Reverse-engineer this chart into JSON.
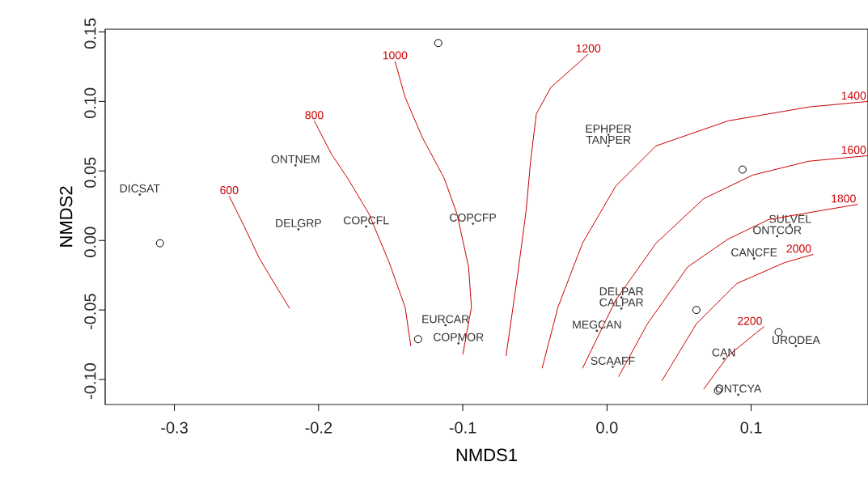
{
  "chart_data": {
    "type": "scatter",
    "xlabel": "NMDS1",
    "ylabel": "NMDS2",
    "xlim": [
      -0.348,
      0.181
    ],
    "ylim": [
      -0.118,
      0.152
    ],
    "xticks": [
      -0.3,
      -0.2,
      -0.1,
      {
        "value": 0,
        "label": "0.0"
      },
      0.1
    ],
    "yticks": [
      {
        "value": -0.1,
        "label": "-0.10"
      },
      {
        "value": -0.05,
        "label": "-0.05"
      },
      {
        "value": 0,
        "label": "0.00"
      },
      {
        "value": 0.05,
        "label": "0.05"
      },
      {
        "value": 0.1,
        "label": "0.10"
      },
      {
        "value": 0.15,
        "label": "0.15"
      }
    ],
    "grid": false,
    "series": [
      {
        "marker": "circle",
        "color": "#000000",
        "x": [
          -0.31,
          -0.117,
          0.094,
          0.062,
          0.119,
          -0.131,
          0.077
        ],
        "values": [
          -0.002,
          0.142,
          0.051,
          -0.05,
          -0.066,
          -0.071,
          -0.108
        ]
      },
      {
        "marker": "circle",
        "color": "#333333",
        "x": [
          -0.324,
          -0.216,
          -0.214,
          -0.167,
          -0.093,
          -0.112,
          -0.103,
          0.001,
          0.001,
          0.01,
          0.01,
          -0.007,
          0.004,
          0.127,
          0.118,
          0.102,
          0.081,
          0.091,
          0.131
        ],
        "values": [
          0.033,
          0.054,
          0.008,
          0.01,
          0.012,
          -0.061,
          -0.074,
          0.076,
          0.068,
          -0.041,
          -0.049,
          -0.065,
          -0.091,
          0.011,
          0.003,
          -0.013,
          -0.085,
          -0.111,
          -0.076
        ],
        "value_labels": [
          "DICSAT",
          "ONTNEM",
          "DELGRP",
          "COPCFL",
          "COPCFP",
          "EURCAR",
          "COPMOR",
          "EPHPER",
          "TANPER",
          "DELPAR",
          "CALPAR",
          "MEGCAN",
          "SCAAFF",
          "SULVEL",
          "ONTCOR",
          "CANCFE",
          "CAN",
          "ONTCYA",
          "URODEA"
        ]
      },
      {
        "type": "line",
        "marker": "none",
        "name": "600",
        "color": "#cc0000",
        "x": [
          -0.262,
          -0.252,
          -0.241,
          -0.23,
          -0.22
        ],
        "values": [
          0.032,
          0.011,
          -0.013,
          -0.032,
          -0.049
        ]
      },
      {
        "type": "line",
        "marker": "none",
        "name": "800",
        "color": "#cc0000",
        "x": [
          -0.203,
          -0.191,
          -0.18,
          -0.165,
          -0.151,
          -0.14,
          -0.136
        ],
        "values": [
          0.086,
          0.062,
          0.045,
          0.019,
          -0.016,
          -0.048,
          -0.076
        ]
      },
      {
        "type": "line",
        "marker": "none",
        "name": "1000",
        "color": "#cc0000",
        "x": [
          -0.147,
          -0.14,
          -0.128,
          -0.113,
          -0.104,
          -0.096,
          -0.094,
          -0.1
        ],
        "values": [
          0.129,
          0.103,
          0.074,
          0.045,
          0.019,
          -0.019,
          -0.048,
          -0.082
        ]
      },
      {
        "type": "line",
        "marker": "none",
        "name": "1200",
        "color": "#cc0000",
        "x": [
          -0.013,
          -0.039,
          -0.049,
          -0.053,
          -0.056,
          -0.062,
          -0.07
        ],
        "values": [
          0.134,
          0.11,
          0.091,
          0.057,
          0.022,
          -0.025,
          -0.083
        ]
      },
      {
        "type": "line",
        "marker": "none",
        "name": "1400",
        "color": "#cc0000",
        "x": [
          -0.045,
          -0.034,
          -0.017,
          0.006,
          0.034,
          0.084,
          0.14,
          0.181
        ],
        "values": [
          -0.092,
          -0.048,
          -0.002,
          0.039,
          0.068,
          0.086,
          0.096,
          0.1
        ]
      },
      {
        "type": "line",
        "marker": "none",
        "name": "1600",
        "color": "#cc0000",
        "x": [
          -0.017,
          0.006,
          0.034,
          0.067,
          0.101,
          0.14,
          0.181
        ],
        "values": [
          -0.092,
          -0.043,
          -0.002,
          0.03,
          0.047,
          0.057,
          0.061
        ]
      },
      {
        "type": "line",
        "marker": "none",
        "name": "1800",
        "color": "#cc0000",
        "x": [
          0.008,
          0.028,
          0.056,
          0.084,
          0.112,
          0.14,
          0.174
        ],
        "values": [
          -0.098,
          -0.06,
          -0.019,
          0.001,
          0.015,
          0.02,
          0.026
        ]
      },
      {
        "type": "line",
        "marker": "none",
        "name": "2000",
        "color": "#cc0000",
        "x": [
          0.038,
          0.062,
          0.09,
          0.123,
          0.143
        ],
        "values": [
          -0.101,
          -0.06,
          -0.031,
          -0.016,
          -0.01
        ]
      },
      {
        "type": "line",
        "marker": "none",
        "name": "2200",
        "color": "#cc0000",
        "x": [
          0.067,
          0.084,
          0.104,
          0.109
        ],
        "values": [
          -0.107,
          -0.083,
          -0.066,
          -0.062
        ]
      }
    ]
  }
}
